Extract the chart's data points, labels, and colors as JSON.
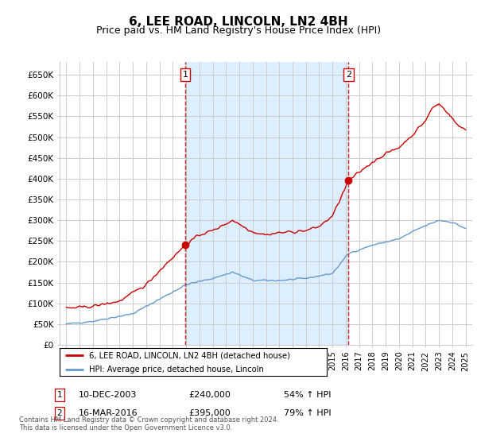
{
  "title": "6, LEE ROAD, LINCOLN, LN2 4BH",
  "subtitle": "Price paid vs. HM Land Registry's House Price Index (HPI)",
  "title_fontsize": 11,
  "subtitle_fontsize": 9,
  "ylim": [
    0,
    680000
  ],
  "yticks": [
    0,
    50000,
    100000,
    150000,
    200000,
    250000,
    300000,
    350000,
    400000,
    450000,
    500000,
    550000,
    600000,
    650000
  ],
  "ytick_labels": [
    "£0",
    "£50K",
    "£100K",
    "£150K",
    "£200K",
    "£250K",
    "£300K",
    "£350K",
    "£400K",
    "£450K",
    "£500K",
    "£550K",
    "£600K",
    "£650K"
  ],
  "xlim_start": 1994.5,
  "xlim_end": 2025.5,
  "transaction1_date": 2003.94,
  "transaction1_price": 240000,
  "transaction1_label": "1",
  "transaction2_date": 2016.21,
  "transaction2_price": 395000,
  "transaction2_label": "2",
  "legend_line1": "6, LEE ROAD, LINCOLN, LN2 4BH (detached house)",
  "legend_line2": "HPI: Average price, detached house, Lincoln",
  "annotation1_date": "10-DEC-2003",
  "annotation1_price": "£240,000",
  "annotation1_hpi": "54% ↑ HPI",
  "annotation2_date": "16-MAR-2016",
  "annotation2_price": "£395,000",
  "annotation2_hpi": "79% ↑ HPI",
  "footer": "Contains HM Land Registry data © Crown copyright and database right 2024.\nThis data is licensed under the Open Government Licence v3.0.",
  "line_color_price": "#cc0000",
  "line_color_hpi": "#6699cc",
  "marker_box_color": "#cc0000",
  "shade_color": "#ddeeff",
  "grid_color": "#cccccc",
  "bg_color": "#ffffff"
}
